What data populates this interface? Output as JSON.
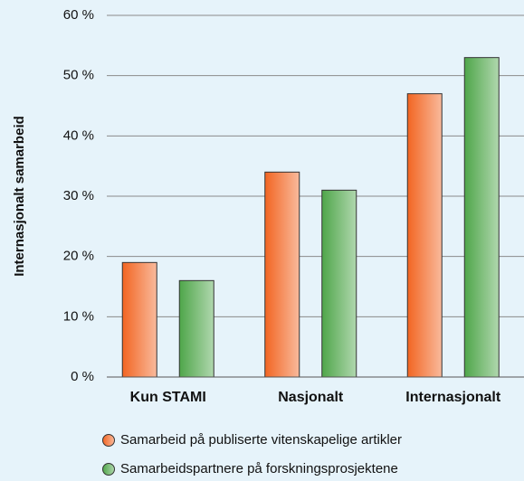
{
  "chart_data": {
    "type": "bar",
    "y_label": "Internasjonalt samarbeid",
    "categories": [
      "Kun STAMI",
      "Nasjonalt",
      "Internasjonalt"
    ],
    "series": [
      {
        "name": "Samarbeid på publiserte vitenskapelige artikler",
        "color": "#f26522",
        "values": [
          19,
          34,
          47
        ]
      },
      {
        "name": "Samarbeidspartnere på forskningsprosjektene",
        "color": "#4fa64a",
        "values": [
          16,
          31,
          53
        ]
      }
    ],
    "ylim": [
      0,
      60
    ],
    "yticks": [
      {
        "value": 0,
        "label": "0 %"
      },
      {
        "value": 10,
        "label": "10 %"
      },
      {
        "value": 20,
        "label": "20 %"
      },
      {
        "value": 30,
        "label": "30 %"
      },
      {
        "value": 40,
        "label": "40 %"
      },
      {
        "value": 50,
        "label": "50 %"
      },
      {
        "value": 60,
        "label": "60 %"
      }
    ],
    "grid": true
  }
}
